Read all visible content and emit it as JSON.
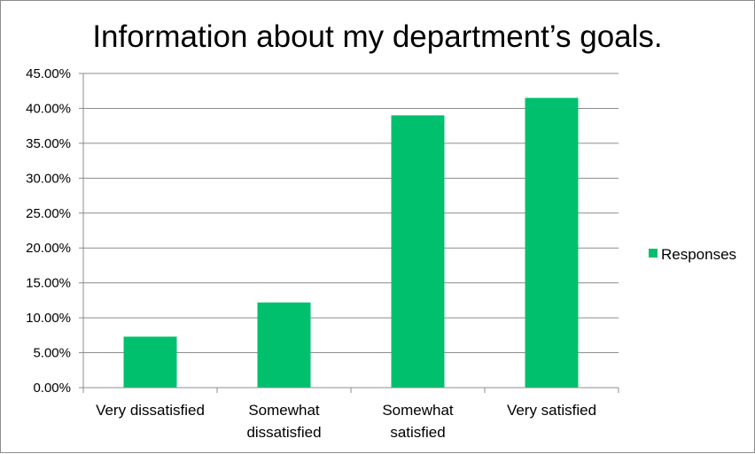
{
  "chart_data": {
    "type": "bar",
    "title": "Information about my department’s goals.",
    "categories": [
      [
        "Very dissatisfied"
      ],
      [
        "Somewhat",
        "dissatisfied"
      ],
      [
        "Somewhat",
        "satisfied"
      ],
      [
        "Very satisfied"
      ]
    ],
    "series": [
      {
        "name": "Responses",
        "values": [
          7.3,
          12.2,
          39.0,
          41.5
        ]
      }
    ],
    "ylim": [
      0,
      45
    ],
    "yticks": [
      0,
      5,
      10,
      15,
      20,
      25,
      30,
      35,
      40,
      45
    ],
    "ytick_format": "percent_2dp",
    "xlabel": "",
    "ylabel": "",
    "grid": true,
    "legend_position": "right",
    "colors": {
      "bar": "#00c06e",
      "grid": "#8c8c8c",
      "axis": "#8c8c8c"
    }
  }
}
